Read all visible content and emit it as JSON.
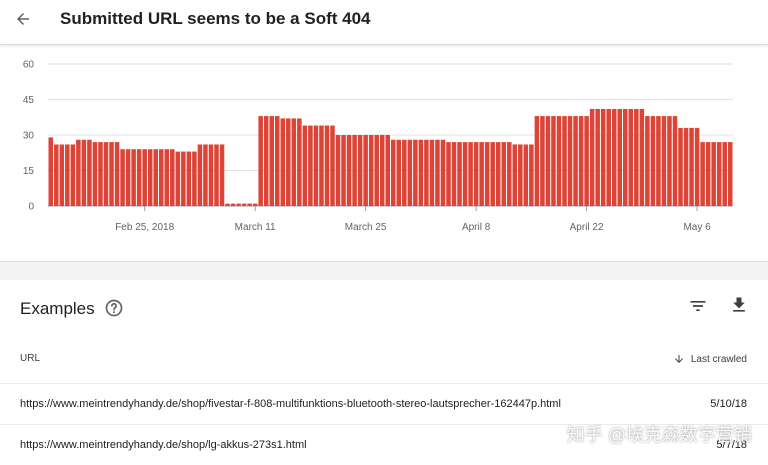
{
  "header": {
    "back_icon": "arrow-back-icon",
    "title": "Submitted URL seems to be a Soft 404"
  },
  "chart_data": {
    "type": "bar",
    "color": "#db4437",
    "ylim": [
      0,
      60
    ],
    "yticks": [
      0,
      15,
      30,
      45,
      60
    ],
    "grid": true,
    "xtick_labels": [
      "Feb 25, 2018",
      "March 11",
      "March 25",
      "April 8",
      "April 22",
      "May 6"
    ],
    "xtick_indices": [
      17,
      37,
      57,
      77,
      97,
      117
    ],
    "values": [
      29,
      26,
      26,
      26,
      26,
      28,
      28,
      28,
      27,
      27,
      27,
      27,
      27,
      24,
      24,
      24,
      24,
      24,
      24,
      24,
      24,
      24,
      24,
      23,
      23,
      23,
      23,
      26,
      26,
      26,
      26,
      26,
      1,
      1,
      1,
      1,
      1,
      1,
      38,
      38,
      38,
      38,
      37,
      37,
      37,
      37,
      34,
      34,
      34,
      34,
      34,
      34,
      30,
      30,
      30,
      30,
      30,
      30,
      30,
      30,
      30,
      30,
      28,
      28,
      28,
      28,
      28,
      28,
      28,
      28,
      28,
      28,
      27,
      27,
      27,
      27,
      27,
      27,
      27,
      27,
      27,
      27,
      27,
      27,
      26,
      26,
      26,
      26,
      38,
      38,
      38,
      38,
      38,
      38,
      38,
      38,
      38,
      38,
      41,
      41,
      41,
      41,
      41,
      41,
      41,
      41,
      41,
      41,
      38,
      38,
      38,
      38,
      38,
      38,
      33,
      33,
      33,
      33,
      27,
      27,
      27,
      27,
      27,
      27
    ]
  },
  "examples": {
    "title": "Examples",
    "help_icon": "help-circle-icon",
    "filter_icon": "filter-icon",
    "download_icon": "download-icon",
    "columns": {
      "url": "URL",
      "crawled": "Last crawled",
      "sort_icon": "arrow-down-icon"
    },
    "rows": [
      {
        "url": "https://www.meintrendyhandy.de/shop/fivestar-f-808-multifunktions-bluetooth-stereo-lautsprecher-162447p.html",
        "date": "5/10/18"
      },
      {
        "url": "https://www.meintrendyhandy.de/shop/lg-akkus-273s1.html",
        "date": "5/7/18"
      }
    ]
  },
  "watermark": "知乎 @埃克森数字营销"
}
